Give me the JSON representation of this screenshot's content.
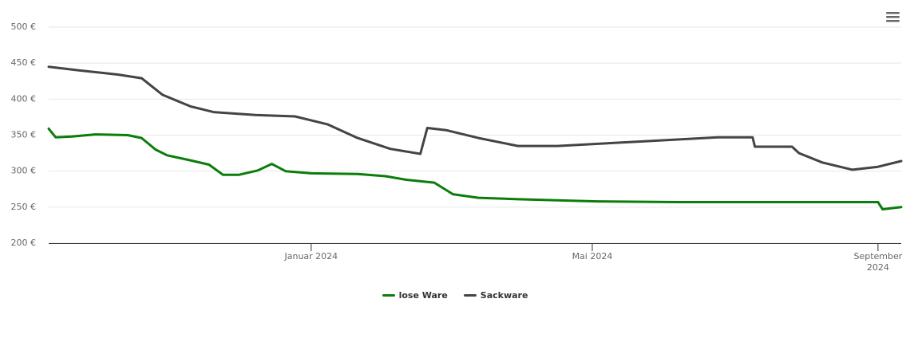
{
  "chart_data": {
    "type": "line",
    "series": [
      {
        "name": "lose Ware",
        "color": "#0a7d0a",
        "x": [
          -113,
          -110,
          -103,
          -93,
          -79,
          -73,
          -67,
          -62,
          -52,
          -44,
          -38,
          -31,
          -23,
          -17,
          -11,
          0,
          20,
          32,
          41,
          53,
          61,
          72,
          89,
          123,
          158,
          192,
          244,
          246,
          254
        ],
        "values": [
          359,
          347,
          348,
          351,
          350,
          346,
          330,
          322,
          315,
          309,
          295,
          295,
          301,
          310,
          300,
          297,
          296,
          293,
          288,
          284,
          268,
          263,
          261,
          258,
          257,
          257,
          257,
          247,
          250
        ]
      },
      {
        "name": "Sackware",
        "color": "#434348",
        "x": [
          -113,
          -100,
          -83,
          -73,
          -64,
          -52,
          -42,
          -24,
          -7,
          7,
          20,
          34,
          47,
          50,
          58,
          72,
          89,
          106,
          141,
          175,
          190,
          191,
          207,
          210,
          220,
          233,
          244,
          254
        ],
        "values": [
          445,
          440,
          434,
          429,
          406,
          390,
          382,
          378,
          376,
          365,
          346,
          331,
          324,
          360,
          357,
          346,
          335,
          335,
          341,
          347,
          347,
          334,
          334,
          325,
          312,
          302,
          306,
          314
        ]
      }
    ],
    "xlim": [
      -113,
      254
    ],
    "xticks": [
      {
        "value": 0,
        "label": "Januar 2024"
      },
      {
        "value": 121,
        "label": "Mai 2024"
      },
      {
        "value": 244,
        "label": "September 2024"
      }
    ],
    "ylim": [
      200,
      500
    ],
    "yticks": [
      {
        "value": 200,
        "label": "200 €"
      },
      {
        "value": 250,
        "label": "250 €"
      },
      {
        "value": 300,
        "label": "300 €"
      },
      {
        "value": 350,
        "label": "350 €"
      },
      {
        "value": 400,
        "label": "400 €"
      },
      {
        "value": 450,
        "label": "450 €"
      },
      {
        "value": 500,
        "label": "500 €"
      }
    ],
    "grid": true
  }
}
